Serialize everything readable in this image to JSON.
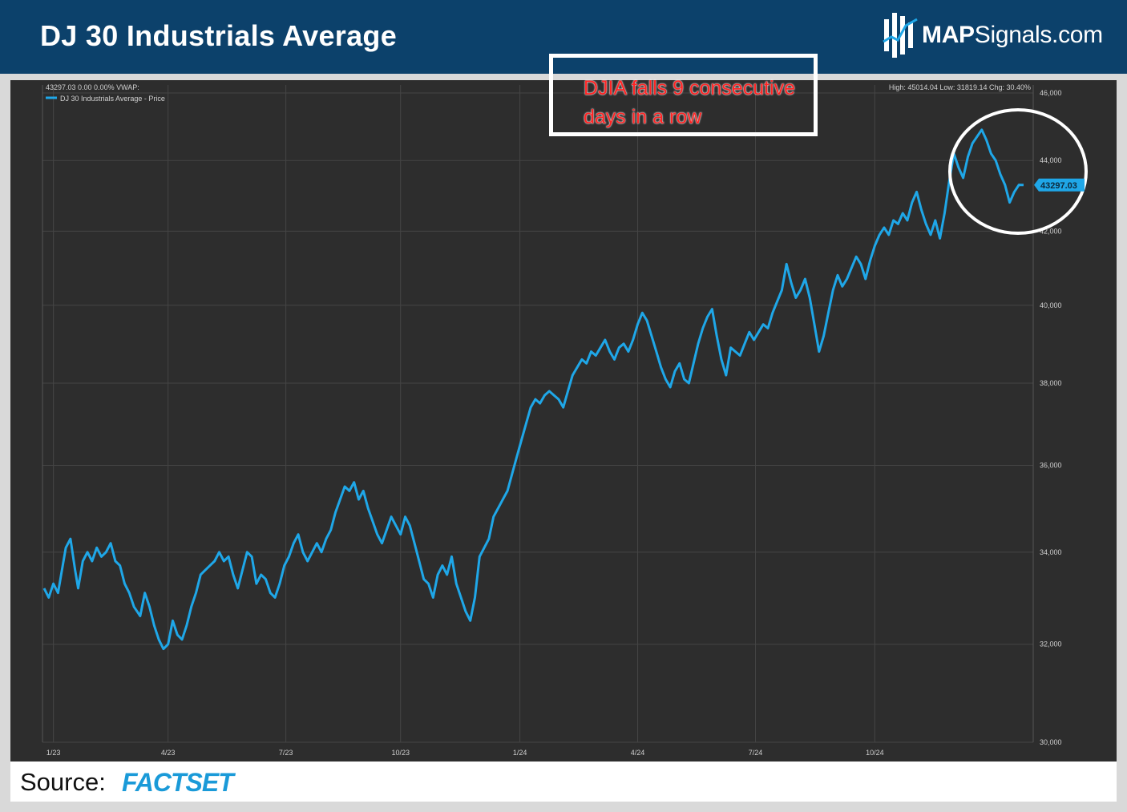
{
  "header": {
    "title": "DJ 30 Industrials Average",
    "brand_bold": "MAP",
    "brand_rest": "Signals.com"
  },
  "chart_info": {
    "readout": "43297.03 0.00 0.00%  VWAP:",
    "legend": "DJ 30 Industrials Average - Price",
    "stats": "High: 45014.04 Low: 31819.14 Chg: 30.40%",
    "last_price_label": "43297.03"
  },
  "annotation": {
    "line1": "DJIA falls 9 consecutive",
    "line2": "days in a row"
  },
  "footer": {
    "source_label": "Source:",
    "source_name": "FACTSET"
  },
  "colors": {
    "line": "#1fa7e8",
    "background": "#2d2d2d",
    "grid": "#454545",
    "header": "#0c416b",
    "annotation_text": "#ff2424"
  },
  "chart_data": {
    "type": "line",
    "title": "DJ 30 Industrials Average",
    "series": [
      {
        "name": "DJ 30 Industrials Average - Price",
        "points": [
          [
            0,
            33200
          ],
          [
            3,
            33000
          ],
          [
            6,
            33300
          ],
          [
            9,
            33100
          ],
          [
            11,
            33500
          ],
          [
            14,
            34100
          ],
          [
            17,
            34300
          ],
          [
            20,
            33600
          ],
          [
            22,
            33200
          ],
          [
            25,
            33800
          ],
          [
            28,
            34000
          ],
          [
            31,
            33800
          ],
          [
            34,
            34100
          ],
          [
            37,
            33900
          ],
          [
            40,
            34000
          ],
          [
            43,
            34200
          ],
          [
            46,
            33800
          ],
          [
            49,
            33700
          ],
          [
            52,
            33300
          ],
          [
            55,
            33100
          ],
          [
            58,
            32800
          ],
          [
            62,
            32600
          ],
          [
            65,
            33100
          ],
          [
            68,
            32800
          ],
          [
            71,
            32400
          ],
          [
            74,
            32100
          ],
          [
            77,
            31900
          ],
          [
            80,
            32000
          ],
          [
            83,
            32500
          ],
          [
            86,
            32200
          ],
          [
            89,
            32100
          ],
          [
            92,
            32400
          ],
          [
            95,
            32800
          ],
          [
            98,
            33100
          ],
          [
            101,
            33500
          ],
          [
            104,
            33600
          ],
          [
            107,
            33700
          ],
          [
            110,
            33800
          ],
          [
            113,
            34000
          ],
          [
            116,
            33800
          ],
          [
            119,
            33900
          ],
          [
            122,
            33500
          ],
          [
            125,
            33200
          ],
          [
            128,
            33600
          ],
          [
            131,
            34000
          ],
          [
            134,
            33900
          ],
          [
            137,
            33300
          ],
          [
            140,
            33500
          ],
          [
            143,
            33400
          ],
          [
            146,
            33100
          ],
          [
            149,
            33000
          ],
          [
            152,
            33300
          ],
          [
            155,
            33700
          ],
          [
            158,
            33900
          ],
          [
            161,
            34200
          ],
          [
            164,
            34400
          ],
          [
            167,
            34000
          ],
          [
            170,
            33800
          ],
          [
            173,
            34000
          ],
          [
            176,
            34200
          ],
          [
            179,
            34000
          ],
          [
            182,
            34300
          ],
          [
            185,
            34500
          ],
          [
            188,
            34900
          ],
          [
            191,
            35200
          ],
          [
            194,
            35500
          ],
          [
            197,
            35400
          ],
          [
            200,
            35600
          ],
          [
            203,
            35200
          ],
          [
            206,
            35400
          ],
          [
            209,
            35000
          ],
          [
            212,
            34700
          ],
          [
            215,
            34400
          ],
          [
            218,
            34200
          ],
          [
            221,
            34500
          ],
          [
            224,
            34800
          ],
          [
            227,
            34600
          ],
          [
            230,
            34400
          ],
          [
            233,
            34800
          ],
          [
            236,
            34600
          ],
          [
            239,
            34200
          ],
          [
            242,
            33800
          ],
          [
            245,
            33400
          ],
          [
            248,
            33300
          ],
          [
            251,
            33000
          ],
          [
            254,
            33500
          ],
          [
            257,
            33700
          ],
          [
            260,
            33500
          ],
          [
            263,
            33900
          ],
          [
            266,
            33300
          ],
          [
            269,
            33000
          ],
          [
            272,
            32700
          ],
          [
            275,
            32500
          ],
          [
            278,
            33000
          ],
          [
            281,
            33900
          ],
          [
            284,
            34100
          ],
          [
            287,
            34300
          ],
          [
            290,
            34800
          ],
          [
            293,
            35000
          ],
          [
            296,
            35200
          ],
          [
            299,
            35400
          ],
          [
            302,
            35800
          ],
          [
            305,
            36200
          ],
          [
            308,
            36600
          ],
          [
            311,
            37000
          ],
          [
            314,
            37400
          ],
          [
            317,
            37600
          ],
          [
            320,
            37500
          ],
          [
            323,
            37700
          ],
          [
            326,
            37800
          ],
          [
            329,
            37700
          ],
          [
            332,
            37600
          ],
          [
            335,
            37400
          ],
          [
            338,
            37800
          ],
          [
            341,
            38200
          ],
          [
            344,
            38400
          ],
          [
            347,
            38600
          ],
          [
            350,
            38500
          ],
          [
            353,
            38800
          ],
          [
            356,
            38700
          ],
          [
            359,
            38900
          ],
          [
            362,
            39100
          ],
          [
            365,
            38800
          ],
          [
            368,
            38600
          ],
          [
            371,
            38900
          ],
          [
            374,
            39000
          ],
          [
            377,
            38800
          ],
          [
            380,
            39100
          ],
          [
            383,
            39500
          ],
          [
            386,
            39800
          ],
          [
            389,
            39600
          ],
          [
            392,
            39200
          ],
          [
            395,
            38800
          ],
          [
            398,
            38400
          ],
          [
            401,
            38100
          ],
          [
            404,
            37900
          ],
          [
            407,
            38300
          ],
          [
            410,
            38500
          ],
          [
            413,
            38100
          ],
          [
            416,
            38000
          ],
          [
            419,
            38500
          ],
          [
            422,
            39000
          ],
          [
            425,
            39400
          ],
          [
            428,
            39700
          ],
          [
            431,
            39900
          ],
          [
            434,
            39200
          ],
          [
            437,
            38600
          ],
          [
            440,
            38200
          ],
          [
            443,
            38900
          ],
          [
            446,
            38800
          ],
          [
            449,
            38700
          ],
          [
            452,
            39000
          ],
          [
            455,
            39300
          ],
          [
            458,
            39100
          ],
          [
            461,
            39300
          ],
          [
            464,
            39500
          ],
          [
            467,
            39400
          ],
          [
            470,
            39800
          ],
          [
            473,
            40100
          ],
          [
            476,
            40400
          ],
          [
            479,
            41100
          ],
          [
            482,
            40600
          ],
          [
            485,
            40200
          ],
          [
            488,
            40400
          ],
          [
            491,
            40700
          ],
          [
            494,
            40200
          ],
          [
            497,
            39500
          ],
          [
            500,
            38800
          ],
          [
            503,
            39200
          ],
          [
            506,
            39800
          ],
          [
            509,
            40400
          ],
          [
            512,
            40800
          ],
          [
            515,
            40500
          ],
          [
            518,
            40700
          ],
          [
            521,
            41000
          ],
          [
            524,
            41300
          ],
          [
            527,
            41100
          ],
          [
            530,
            40700
          ],
          [
            533,
            41200
          ],
          [
            536,
            41600
          ],
          [
            539,
            41900
          ],
          [
            542,
            42100
          ],
          [
            545,
            41900
          ],
          [
            548,
            42300
          ],
          [
            551,
            42200
          ],
          [
            554,
            42500
          ],
          [
            557,
            42300
          ],
          [
            560,
            42800
          ],
          [
            563,
            43100
          ],
          [
            566,
            42600
          ],
          [
            569,
            42200
          ],
          [
            572,
            41900
          ],
          [
            575,
            42300
          ],
          [
            578,
            41800
          ],
          [
            581,
            42500
          ],
          [
            584,
            43400
          ],
          [
            587,
            44200
          ],
          [
            590,
            43800
          ],
          [
            593,
            43500
          ],
          [
            596,
            44100
          ],
          [
            599,
            44500
          ],
          [
            602,
            44700
          ],
          [
            605,
            44900
          ],
          [
            608,
            44600
          ],
          [
            611,
            44200
          ],
          [
            614,
            44000
          ],
          [
            617,
            43600
          ],
          [
            620,
            43300
          ],
          [
            623,
            42800
          ],
          [
            626,
            43100
          ],
          [
            629,
            43300
          ],
          [
            632,
            43297.03
          ]
        ]
      }
    ],
    "x_unit": "trading day index (from early Jan 2023)",
    "x_range": [
      0,
      632
    ],
    "x_ticks": [
      {
        "x": 6,
        "label": "1/23"
      },
      {
        "x": 80,
        "label": "4/23"
      },
      {
        "x": 156,
        "label": "7/23"
      },
      {
        "x": 230,
        "label": "10/23"
      },
      {
        "x": 307,
        "label": "1/24"
      },
      {
        "x": 383,
        "label": "4/24"
      },
      {
        "x": 459,
        "label": "7/24"
      },
      {
        "x": 536,
        "label": "10/24"
      }
    ],
    "ylim": [
      30000,
      46000
    ],
    "y_ticks": [
      {
        "value": 30000,
        "label": "30,000"
      },
      {
        "value": 32000,
        "label": "32,000"
      },
      {
        "value": 34000,
        "label": "34,000"
      },
      {
        "value": 36000,
        "label": "36,000"
      },
      {
        "value": 38000,
        "label": "38,000"
      },
      {
        "value": 40000,
        "label": "40,000"
      },
      {
        "value": 42000,
        "label": "42,000"
      },
      {
        "value": 44000,
        "label": "44,000"
      },
      {
        "value": 46000,
        "label": "46,000"
      }
    ],
    "last_value": 43297.03,
    "high": 45014.04,
    "low": 31819.14,
    "change_pct": 30.4,
    "grid": true,
    "legend_position": "top-left"
  }
}
